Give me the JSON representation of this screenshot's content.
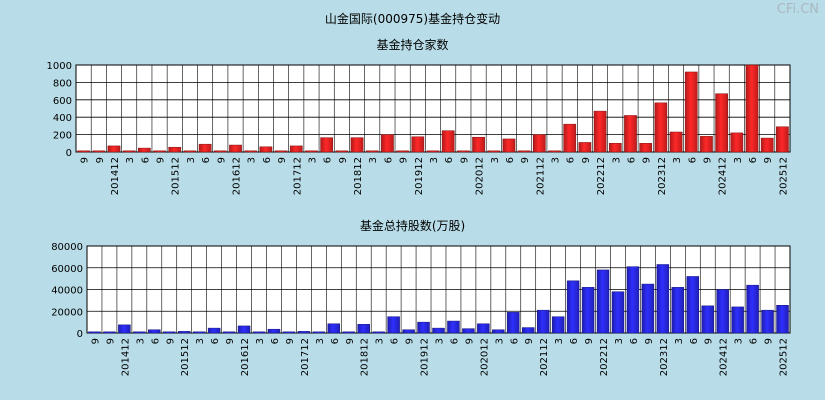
{
  "page": {
    "title": "山金国际(000975)基金持仓变动",
    "watermark": "CFi.CN"
  },
  "chart_data": [
    {
      "type": "bar",
      "title": "基金持仓家数",
      "ylim": [
        0,
        1000
      ],
      "yticks": [
        0,
        200,
        400,
        600,
        800,
        1000
      ],
      "grid": true,
      "bar_color": "#ee2222",
      "x_labels": [
        "9",
        "9",
        "201412",
        "3",
        "6",
        "9",
        "201512",
        "3",
        "6",
        "9",
        "201612",
        "3",
        "6",
        "9",
        "201712",
        "3",
        "6",
        "9",
        "201812",
        "3",
        "6",
        "9",
        "201912",
        "3",
        "6",
        "9",
        "202012",
        "3",
        "6",
        "9",
        "202112",
        "3",
        "6",
        "9",
        "202212",
        "3",
        "6",
        "9",
        "202312",
        "3",
        "6",
        "9",
        "202412",
        "3",
        "6",
        "9",
        "202512"
      ],
      "values": [
        10,
        10,
        70,
        10,
        45,
        10,
        55,
        10,
        90,
        10,
        80,
        10,
        60,
        10,
        70,
        10,
        165,
        10,
        165,
        10,
        200,
        10,
        175,
        10,
        245,
        10,
        170,
        10,
        150,
        10,
        200,
        10,
        320,
        110,
        470,
        100,
        420,
        100,
        565,
        230,
        920,
        180,
        670,
        220,
        1000,
        160,
        290
      ]
    },
    {
      "type": "bar",
      "title": "基金总持股数(万股)",
      "ylim": [
        0,
        80000
      ],
      "yticks": [
        0,
        20000,
        40000,
        60000,
        80000
      ],
      "grid": true,
      "bar_color": "#2828e6",
      "x_labels": [
        "9",
        "9",
        "201412",
        "3",
        "6",
        "9",
        "201512",
        "3",
        "6",
        "9",
        "201612",
        "3",
        "6",
        "9",
        "201712",
        "3",
        "6",
        "9",
        "201812",
        "3",
        "6",
        "9",
        "201912",
        "3",
        "6",
        "9",
        "202012",
        "3",
        "6",
        "9",
        "202112",
        "3",
        "6",
        "9",
        "202212",
        "3",
        "6",
        "9",
        "202312",
        "3",
        "6",
        "9",
        "202412",
        "3",
        "6",
        "9",
        "202512"
      ],
      "values": [
        800,
        800,
        7500,
        800,
        3000,
        800,
        1500,
        800,
        4500,
        800,
        6500,
        800,
        3500,
        800,
        1500,
        800,
        8500,
        800,
        8000,
        800,
        15000,
        3000,
        10000,
        4500,
        11000,
        4000,
        8500,
        3000,
        19000,
        5000,
        21000,
        15000,
        48000,
        42000,
        58000,
        38000,
        61000,
        45000,
        63000,
        42000,
        52000,
        25000,
        40000,
        24000,
        44000,
        21000,
        25500
      ]
    }
  ]
}
